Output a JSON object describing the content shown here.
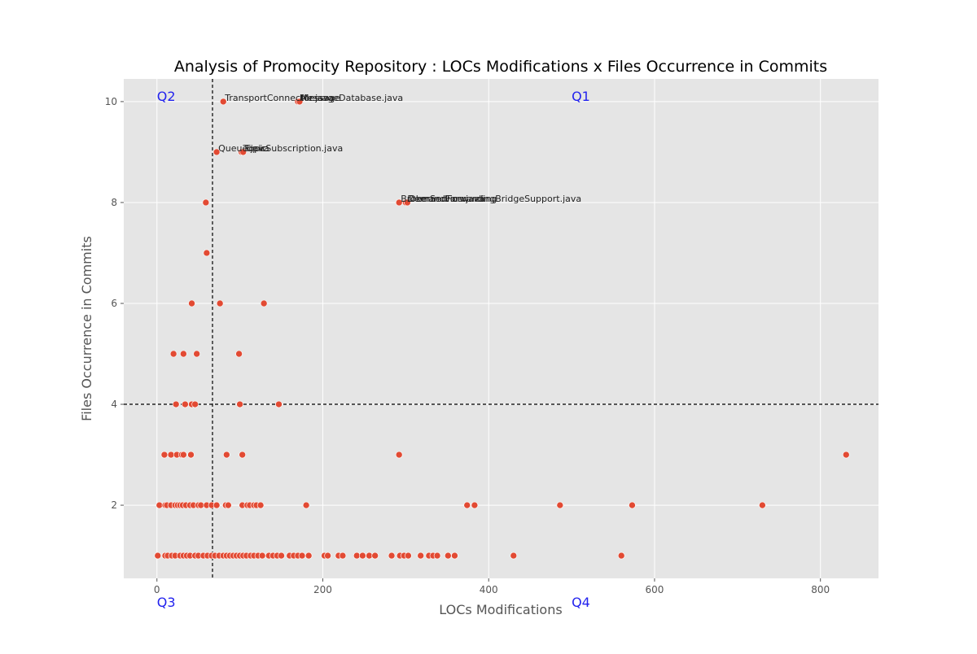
{
  "chart_data": {
    "type": "scatter",
    "title": "Analysis of Promocity Repository : LOCs Modifications x Files Occurrence in Commits",
    "xlabel": "LOCs Modifications",
    "ylabel": "Files Occurrence in Commits",
    "xlim": [
      -40,
      870
    ],
    "ylim": [
      0.55,
      10.45
    ],
    "xticks": [
      0,
      200,
      400,
      600,
      800
    ],
    "yticks": [
      2,
      4,
      6,
      8,
      10
    ],
    "grid": true,
    "colors": {
      "point": "#e24a33",
      "plot_bg": "#e5e5e5",
      "grid": "#ffffff",
      "threshold": "#000000",
      "quadrant": "#2222ee"
    },
    "thresholds": {
      "x": 67,
      "y": 4
    },
    "quadrants": [
      {
        "text": "Q2",
        "x": 0,
        "y": 10.0
      },
      {
        "text": "Q1",
        "x": 500,
        "y": 10.0
      },
      {
        "text": "Q3",
        "x": 0,
        "y": 0.0
      },
      {
        "text": "Q4",
        "x": 500,
        "y": 0.0
      }
    ],
    "labeled_points": [
      {
        "x": 80,
        "y": 10,
        "label": "TransportConnector.java"
      },
      {
        "x": 170,
        "y": 10,
        "label": "MessageDatabase.java"
      },
      {
        "x": 172,
        "y": 10,
        "label": "Message"
      },
      {
        "x": 72,
        "y": 9,
        "label": "Queue.java"
      },
      {
        "x": 102,
        "y": 9,
        "label": "TopicSubscription.java"
      },
      {
        "x": 104,
        "y": 9,
        "label": "Topic"
      },
      {
        "x": 292,
        "y": 8,
        "label": "BrokerService.java"
      },
      {
        "x": 300,
        "y": 8,
        "label": "DemandForwardingBridgeSupport.java"
      },
      {
        "x": 302,
        "y": 8,
        "label": "DemandForwarding"
      }
    ],
    "points": [
      {
        "x": 59,
        "y": 8
      },
      {
        "x": 60,
        "y": 7
      },
      {
        "x": 42,
        "y": 6
      },
      {
        "x": 76,
        "y": 6
      },
      {
        "x": 129,
        "y": 6
      },
      {
        "x": 20,
        "y": 5
      },
      {
        "x": 32,
        "y": 5
      },
      {
        "x": 48,
        "y": 5
      },
      {
        "x": 99,
        "y": 5
      },
      {
        "x": 23,
        "y": 4
      },
      {
        "x": 34,
        "y": 4
      },
      {
        "x": 42,
        "y": 4
      },
      {
        "x": 46,
        "y": 4
      },
      {
        "x": 100,
        "y": 4
      },
      {
        "x": 147,
        "y": 4
      },
      {
        "x": 9,
        "y": 3
      },
      {
        "x": 17,
        "y": 3
      },
      {
        "x": 24,
        "y": 3
      },
      {
        "x": 30,
        "y": 3
      },
      {
        "x": 32,
        "y": 3
      },
      {
        "x": 41,
        "y": 3
      },
      {
        "x": 84,
        "y": 3
      },
      {
        "x": 103,
        "y": 3
      },
      {
        "x": 292,
        "y": 3
      },
      {
        "x": 831,
        "y": 3
      },
      {
        "x": 3,
        "y": 2
      },
      {
        "x": 10,
        "y": 2
      },
      {
        "x": 12,
        "y": 2
      },
      {
        "x": 17,
        "y": 2
      },
      {
        "x": 22,
        "y": 2
      },
      {
        "x": 25,
        "y": 2
      },
      {
        "x": 28,
        "y": 2
      },
      {
        "x": 31,
        "y": 2
      },
      {
        "x": 35,
        "y": 2
      },
      {
        "x": 40,
        "y": 2
      },
      {
        "x": 44,
        "y": 2
      },
      {
        "x": 50,
        "y": 2
      },
      {
        "x": 53,
        "y": 2
      },
      {
        "x": 60,
        "y": 2
      },
      {
        "x": 66,
        "y": 2
      },
      {
        "x": 72,
        "y": 2
      },
      {
        "x": 83,
        "y": 2
      },
      {
        "x": 86,
        "y": 2
      },
      {
        "x": 103,
        "y": 2
      },
      {
        "x": 109,
        "y": 2
      },
      {
        "x": 112,
        "y": 2
      },
      {
        "x": 117,
        "y": 2
      },
      {
        "x": 120,
        "y": 2
      },
      {
        "x": 125,
        "y": 2
      },
      {
        "x": 180,
        "y": 2
      },
      {
        "x": 374,
        "y": 2
      },
      {
        "x": 383,
        "y": 2
      },
      {
        "x": 486,
        "y": 2
      },
      {
        "x": 573,
        "y": 2
      },
      {
        "x": 730,
        "y": 2
      },
      {
        "x": 1,
        "y": 1
      },
      {
        "x": 10,
        "y": 1
      },
      {
        "x": 13,
        "y": 1
      },
      {
        "x": 18,
        "y": 1
      },
      {
        "x": 22,
        "y": 1
      },
      {
        "x": 28,
        "y": 1
      },
      {
        "x": 32,
        "y": 1
      },
      {
        "x": 36,
        "y": 1
      },
      {
        "x": 40,
        "y": 1
      },
      {
        "x": 46,
        "y": 1
      },
      {
        "x": 50,
        "y": 1
      },
      {
        "x": 56,
        "y": 1
      },
      {
        "x": 61,
        "y": 1
      },
      {
        "x": 66,
        "y": 1
      },
      {
        "x": 70,
        "y": 1
      },
      {
        "x": 75,
        "y": 1
      },
      {
        "x": 80,
        "y": 1
      },
      {
        "x": 84,
        "y": 1
      },
      {
        "x": 88,
        "y": 1
      },
      {
        "x": 92,
        "y": 1
      },
      {
        "x": 96,
        "y": 1
      },
      {
        "x": 100,
        "y": 1
      },
      {
        "x": 104,
        "y": 1
      },
      {
        "x": 108,
        "y": 1
      },
      {
        "x": 113,
        "y": 1
      },
      {
        "x": 117,
        "y": 1
      },
      {
        "x": 122,
        "y": 1
      },
      {
        "x": 127,
        "y": 1
      },
      {
        "x": 135,
        "y": 1
      },
      {
        "x": 140,
        "y": 1
      },
      {
        "x": 145,
        "y": 1
      },
      {
        "x": 150,
        "y": 1
      },
      {
        "x": 160,
        "y": 1
      },
      {
        "x": 165,
        "y": 1
      },
      {
        "x": 170,
        "y": 1
      },
      {
        "x": 175,
        "y": 1
      },
      {
        "x": 183,
        "y": 1
      },
      {
        "x": 202,
        "y": 1
      },
      {
        "x": 206,
        "y": 1
      },
      {
        "x": 219,
        "y": 1
      },
      {
        "x": 224,
        "y": 1
      },
      {
        "x": 241,
        "y": 1
      },
      {
        "x": 248,
        "y": 1
      },
      {
        "x": 256,
        "y": 1
      },
      {
        "x": 263,
        "y": 1
      },
      {
        "x": 283,
        "y": 1
      },
      {
        "x": 293,
        "y": 1
      },
      {
        "x": 298,
        "y": 1
      },
      {
        "x": 303,
        "y": 1
      },
      {
        "x": 318,
        "y": 1
      },
      {
        "x": 328,
        "y": 1
      },
      {
        "x": 333,
        "y": 1
      },
      {
        "x": 338,
        "y": 1
      },
      {
        "x": 351,
        "y": 1
      },
      {
        "x": 359,
        "y": 1
      },
      {
        "x": 430,
        "y": 1
      },
      {
        "x": 560,
        "y": 1
      }
    ]
  }
}
